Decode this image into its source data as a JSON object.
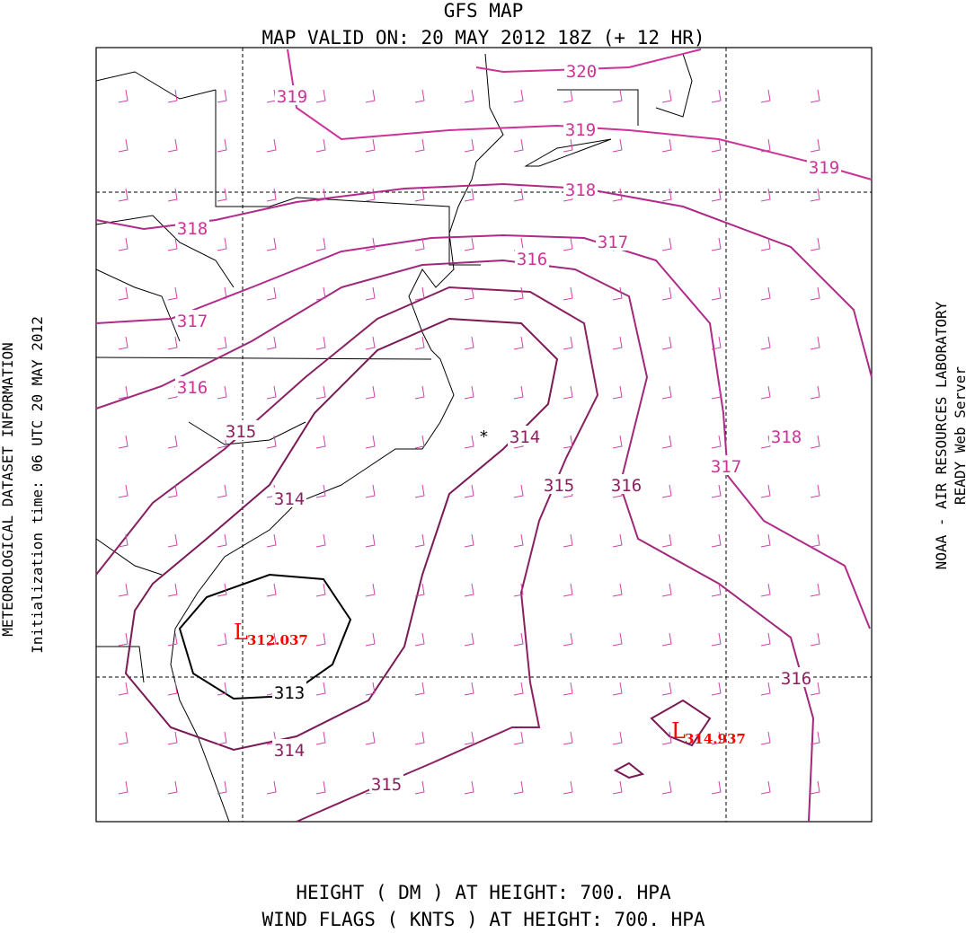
{
  "header": {
    "title": "GFS MAP",
    "subtitle": "MAP VALID ON: 20 MAY 2012 18Z (+ 12 HR)"
  },
  "footer": [
    "HEIGHT (   DM   ) AT HEIGHT: 700. HPA",
    "WIND FLAGS ( KNTS ) AT HEIGHT: 700. HPA"
  ],
  "side": {
    "left": [
      "METEOROLOGICAL DATASET INFORMATION",
      "Initialization time: 06 UTC 20 MAY 2012"
    ],
    "right": [
      "NOAA - AIR RESOURCES LABORATORY",
      "READY Web Server"
    ]
  },
  "contour_labels": [
    "320",
    "319",
    "319",
    "319",
    "318",
    "318",
    "317",
    "316",
    "317",
    "316",
    "315",
    "314",
    "318",
    "317",
    "315",
    "316",
    "314",
    "313",
    "314",
    "315",
    "316"
  ],
  "lows": [
    {
      "symbol": "L",
      "value": "312.037"
    },
    {
      "symbol": "L",
      "value": "314.937"
    }
  ]
}
